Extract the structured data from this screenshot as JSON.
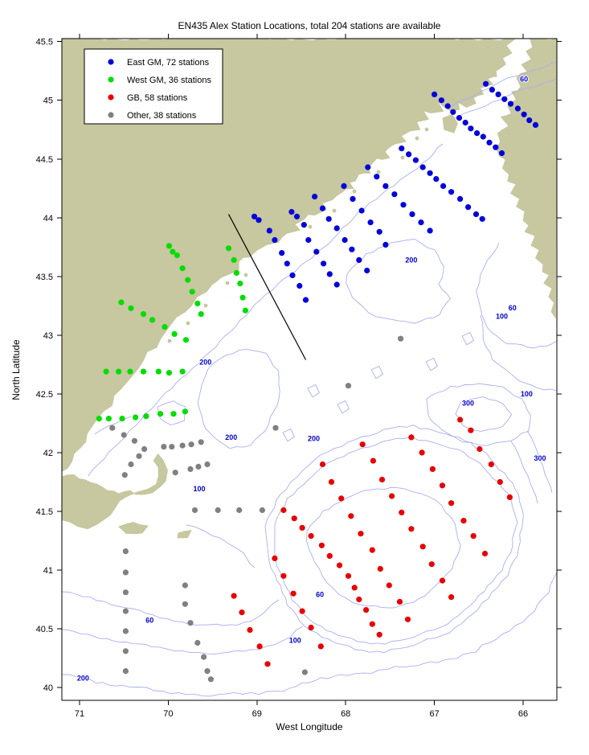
{
  "title": "EN435 Alex Station Locations, total 204 stations are available",
  "xlabel": "West Longitude",
  "ylabel": "North Latitude",
  "colors": {
    "east_gm": "#0000dd",
    "west_gm": "#00dd00",
    "gb": "#e80000",
    "other": "#808080",
    "land": "#c7c7a0",
    "sea": "#ffffff",
    "contour": "#a9aff0",
    "contour_label": "#0000cc",
    "annotation_line": "#000000"
  },
  "legend": {
    "items": [
      {
        "label": "East GM, 72 stations",
        "color": "#0000dd"
      },
      {
        "label": "West GM, 36 stations",
        "color": "#00dd00"
      },
      {
        "label": "GB, 58 stations",
        "color": "#e80000"
      },
      {
        "label": "Other, 38 stations",
        "color": "#808080"
      }
    ]
  },
  "axes": {
    "x_ticks": [
      71,
      70,
      69,
      68,
      67,
      66
    ],
    "y_ticks": [
      45.5,
      45,
      44.5,
      44,
      43.5,
      43,
      42.5,
      42,
      41.5,
      41,
      40.5,
      40
    ],
    "x_range_lon": [
      71.2,
      65.6
    ],
    "y_range_lat": [
      39.9,
      45.53
    ]
  },
  "map": {
    "contour_labels": [
      {
        "lon": 65.99,
        "lat": 45.16,
        "value": "60"
      },
      {
        "lon": 67.26,
        "lat": 43.62,
        "value": "200"
      },
      {
        "lon": 66.12,
        "lat": 43.21,
        "value": "60"
      },
      {
        "lon": 66.24,
        "lat": 43.14,
        "value": "100"
      },
      {
        "lon": 69.58,
        "lat": 42.75,
        "value": "200"
      },
      {
        "lon": 65.96,
        "lat": 42.48,
        "value": "100"
      },
      {
        "lon": 66.62,
        "lat": 42.4,
        "value": "300"
      },
      {
        "lon": 69.29,
        "lat": 42.11,
        "value": "200"
      },
      {
        "lon": 68.36,
        "lat": 42.1,
        "value": "200"
      },
      {
        "lon": 65.81,
        "lat": 41.93,
        "value": "300"
      },
      {
        "lon": 69.65,
        "lat": 41.67,
        "value": "100"
      },
      {
        "lon": 68.29,
        "lat": 40.77,
        "value": "60"
      },
      {
        "lon": 70.21,
        "lat": 40.55,
        "value": "60"
      },
      {
        "lon": 68.57,
        "lat": 40.38,
        "value": "100"
      },
      {
        "lon": 70.96,
        "lat": 40.06,
        "value": "200"
      }
    ],
    "annotation_line": {
      "from": [
        69.32,
        44.03
      ],
      "to": [
        68.45,
        42.79
      ]
    }
  },
  "chart_data": {
    "type": "scatter",
    "title": "EN435 Alex Station Locations, total 204 stations are available",
    "xlabel": "West Longitude",
    "ylabel": "North Latitude",
    "x_axis_reversed": true,
    "xlim": [
      71.2,
      65.6
    ],
    "ylim": [
      39.9,
      45.53
    ],
    "legend_position": "upper-left",
    "series": [
      {
        "name": "East GM, 72 stations",
        "color": "#0000dd",
        "points": [
          [
            66.42,
            45.14
          ],
          [
            66.35,
            45.09
          ],
          [
            66.28,
            45.05
          ],
          [
            66.21,
            45.01
          ],
          [
            66.14,
            44.97
          ],
          [
            66.06,
            44.93
          ],
          [
            65.99,
            44.88
          ],
          [
            65.93,
            44.83
          ],
          [
            65.86,
            44.79
          ],
          [
            67.0,
            45.05
          ],
          [
            66.92,
            45.0
          ],
          [
            66.85,
            44.95
          ],
          [
            66.79,
            44.9
          ],
          [
            66.72,
            44.85
          ],
          [
            66.65,
            44.81
          ],
          [
            66.59,
            44.76
          ],
          [
            66.52,
            44.72
          ],
          [
            66.45,
            44.69
          ],
          [
            66.38,
            44.64
          ],
          [
            66.31,
            44.6
          ],
          [
            66.24,
            44.55
          ],
          [
            67.37,
            44.59
          ],
          [
            67.29,
            44.54
          ],
          [
            67.21,
            44.49
          ],
          [
            67.13,
            44.43
          ],
          [
            67.05,
            44.38
          ],
          [
            66.98,
            44.33
          ],
          [
            66.9,
            44.27
          ],
          [
            66.81,
            44.22
          ],
          [
            66.71,
            44.16
          ],
          [
            66.62,
            44.09
          ],
          [
            66.53,
            44.03
          ],
          [
            66.46,
            43.99
          ],
          [
            67.75,
            44.43
          ],
          [
            67.65,
            44.35
          ],
          [
            67.55,
            44.27
          ],
          [
            67.45,
            44.2
          ],
          [
            67.35,
            44.11
          ],
          [
            67.25,
            44.03
          ],
          [
            67.15,
            43.96
          ],
          [
            67.05,
            43.89
          ],
          [
            68.02,
            44.27
          ],
          [
            67.92,
            44.16
          ],
          [
            67.82,
            44.06
          ],
          [
            67.72,
            43.96
          ],
          [
            67.62,
            43.88
          ],
          [
            67.55,
            43.77
          ],
          [
            68.35,
            44.18
          ],
          [
            68.26,
            44.08
          ],
          [
            68.19,
            43.99
          ],
          [
            68.1,
            43.91
          ],
          [
            68.01,
            43.81
          ],
          [
            67.93,
            43.73
          ],
          [
            67.85,
            43.64
          ],
          [
            67.76,
            43.55
          ],
          [
            68.61,
            44.05
          ],
          [
            68.55,
            44.01
          ],
          [
            68.47,
            43.94
          ],
          [
            68.42,
            43.81
          ],
          [
            68.33,
            43.71
          ],
          [
            68.25,
            43.61
          ],
          [
            68.18,
            43.52
          ],
          [
            68.1,
            43.43
          ],
          [
            69.03,
            44.01
          ],
          [
            68.98,
            43.98
          ],
          [
            68.86,
            43.89
          ],
          [
            68.8,
            43.81
          ],
          [
            68.72,
            43.7
          ],
          [
            68.66,
            43.61
          ],
          [
            68.6,
            43.51
          ],
          [
            68.52,
            43.42
          ],
          [
            68.45,
            43.3
          ]
        ]
      },
      {
        "name": "West GM, 36 stations",
        "color": "#00dd00",
        "points": [
          [
            69.99,
            43.76
          ],
          [
            69.95,
            43.71
          ],
          [
            69.9,
            43.68
          ],
          [
            69.84,
            43.57
          ],
          [
            69.78,
            43.47
          ],
          [
            69.73,
            43.37
          ],
          [
            69.67,
            43.27
          ],
          [
            69.63,
            43.18
          ],
          [
            69.32,
            43.74
          ],
          [
            69.26,
            43.64
          ],
          [
            69.23,
            43.53
          ],
          [
            69.19,
            43.44
          ],
          [
            69.16,
            43.32
          ],
          [
            69.13,
            43.21
          ],
          [
            70.53,
            43.28
          ],
          [
            70.42,
            43.23
          ],
          [
            70.28,
            43.18
          ],
          [
            70.18,
            43.13
          ],
          [
            70.04,
            43.07
          ],
          [
            69.93,
            43.01
          ],
          [
            69.8,
            42.96
          ],
          [
            70.7,
            42.69
          ],
          [
            70.56,
            42.69
          ],
          [
            70.43,
            42.69
          ],
          [
            70.28,
            42.69
          ],
          [
            70.11,
            42.69
          ],
          [
            69.99,
            42.68
          ],
          [
            69.84,
            42.69
          ],
          [
            70.78,
            42.29
          ],
          [
            70.67,
            42.29
          ],
          [
            70.52,
            42.29
          ],
          [
            70.37,
            42.3
          ],
          [
            70.25,
            42.31
          ],
          [
            70.09,
            42.33
          ],
          [
            69.94,
            42.33
          ],
          [
            69.81,
            42.35
          ]
        ]
      },
      {
        "name": "GB, 58 stations",
        "color": "#e80000",
        "points": [
          [
            66.71,
            42.28
          ],
          [
            66.59,
            42.19
          ],
          [
            66.49,
            42.03
          ],
          [
            66.36,
            41.9
          ],
          [
            66.26,
            41.75
          ],
          [
            66.15,
            41.62
          ],
          [
            67.26,
            42.13
          ],
          [
            67.14,
            42.0
          ],
          [
            67.02,
            41.86
          ],
          [
            66.91,
            41.72
          ],
          [
            66.81,
            41.57
          ],
          [
            66.67,
            41.42
          ],
          [
            66.56,
            41.29
          ],
          [
            66.43,
            41.14
          ],
          [
            67.81,
            42.07
          ],
          [
            67.69,
            41.93
          ],
          [
            67.59,
            41.77
          ],
          [
            67.48,
            41.63
          ],
          [
            67.37,
            41.49
          ],
          [
            67.26,
            41.35
          ],
          [
            67.13,
            41.2
          ],
          [
            67.03,
            41.05
          ],
          [
            66.91,
            40.91
          ],
          [
            66.81,
            40.77
          ],
          [
            68.26,
            41.9
          ],
          [
            68.16,
            41.75
          ],
          [
            68.05,
            41.61
          ],
          [
            67.94,
            41.46
          ],
          [
            67.83,
            41.31
          ],
          [
            67.7,
            41.17
          ],
          [
            67.61,
            41.01
          ],
          [
            67.51,
            40.87
          ],
          [
            67.39,
            40.73
          ],
          [
            67.3,
            40.58
          ],
          [
            68.7,
            41.51
          ],
          [
            68.58,
            41.44
          ],
          [
            68.49,
            41.36
          ],
          [
            68.39,
            41.29
          ],
          [
            68.27,
            41.21
          ],
          [
            68.18,
            41.12
          ],
          [
            68.07,
            41.04
          ],
          [
            67.97,
            40.95
          ],
          [
            67.9,
            40.85
          ],
          [
            67.85,
            40.75
          ],
          [
            67.77,
            40.66
          ],
          [
            67.7,
            40.54
          ],
          [
            67.62,
            40.45
          ],
          [
            68.8,
            41.1
          ],
          [
            68.7,
            40.95
          ],
          [
            68.59,
            40.8
          ],
          [
            68.49,
            40.65
          ],
          [
            68.39,
            40.51
          ],
          [
            68.28,
            40.35
          ],
          [
            69.26,
            40.78
          ],
          [
            69.17,
            40.64
          ],
          [
            69.08,
            40.49
          ],
          [
            68.97,
            40.35
          ],
          [
            68.88,
            40.2
          ]
        ]
      },
      {
        "name": "Other, 38 stations",
        "color": "#808080",
        "points": [
          [
            70.63,
            42.21
          ],
          [
            70.5,
            42.15
          ],
          [
            70.38,
            42.1
          ],
          [
            70.27,
            42.03
          ],
          [
            70.33,
            41.97
          ],
          [
            70.42,
            41.9
          ],
          [
            70.49,
            41.81
          ],
          [
            70.05,
            42.05
          ],
          [
            69.96,
            42.05
          ],
          [
            69.84,
            42.06
          ],
          [
            69.74,
            42.07
          ],
          [
            69.63,
            42.09
          ],
          [
            69.92,
            41.83
          ],
          [
            69.75,
            41.86
          ],
          [
            69.66,
            41.88
          ],
          [
            69.56,
            41.9
          ],
          [
            69.7,
            41.51
          ],
          [
            69.44,
            41.51
          ],
          [
            69.2,
            41.51
          ],
          [
            68.94,
            41.51
          ],
          [
            70.48,
            41.16
          ],
          [
            70.48,
            40.98
          ],
          [
            70.48,
            40.81
          ],
          [
            70.48,
            40.65
          ],
          [
            70.48,
            40.48
          ],
          [
            70.48,
            40.31
          ],
          [
            70.48,
            40.14
          ],
          [
            69.81,
            40.87
          ],
          [
            69.81,
            40.71
          ],
          [
            69.75,
            40.55
          ],
          [
            69.67,
            40.38
          ],
          [
            69.6,
            40.26
          ],
          [
            69.56,
            40.14
          ],
          [
            69.52,
            40.07
          ],
          [
            67.38,
            42.97
          ],
          [
            67.97,
            42.57
          ],
          [
            68.79,
            42.21
          ],
          [
            68.46,
            40.13
          ]
        ]
      }
    ]
  }
}
